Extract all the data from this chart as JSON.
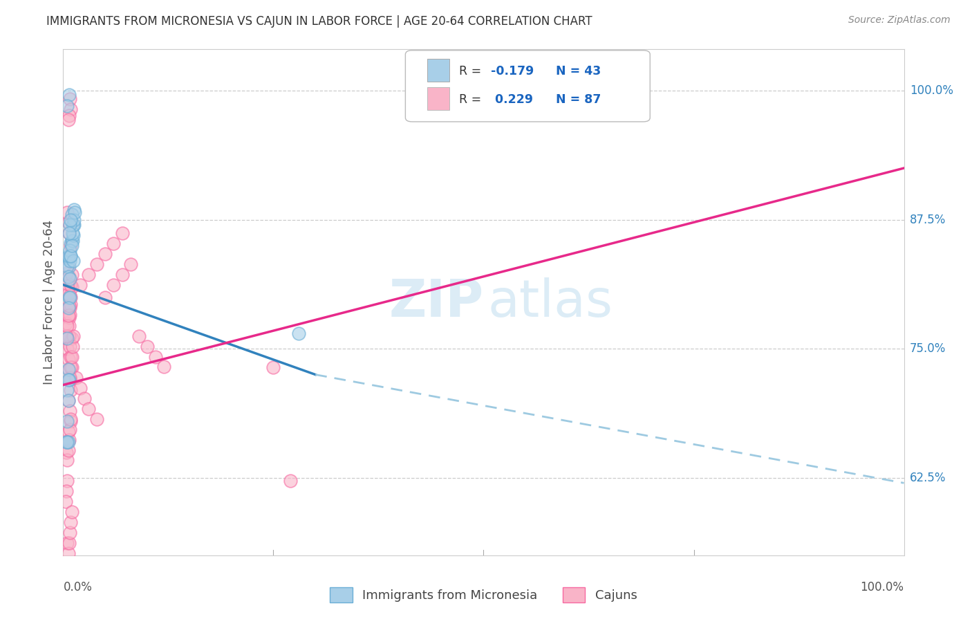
{
  "title": "IMMIGRANTS FROM MICRONESIA VS CAJUN IN LABOR FORCE | AGE 20-64 CORRELATION CHART",
  "source": "Source: ZipAtlas.com",
  "ylabel": "In Labor Force | Age 20-64",
  "yticks": [
    62.5,
    75.0,
    87.5,
    100.0
  ],
  "ytick_labels": [
    "62.5%",
    "75.0%",
    "87.5%",
    "100.0%"
  ],
  "xmin": 0.0,
  "xmax": 100.0,
  "ymin": 55.0,
  "ymax": 104.0,
  "legend_label1": "Immigrants from Micronesia",
  "legend_label2": "Cajuns",
  "R1": -0.179,
  "N1": 43,
  "R2": 0.229,
  "N2": 87,
  "color_blue": "#a8cfe8",
  "color_blue_edge": "#6aaed6",
  "color_pink": "#f9b4c8",
  "color_pink_edge": "#f768a1",
  "color_blue_line": "#3182bd",
  "color_pink_line": "#e7298a",
  "color_blue_dash": "#9ecae1",
  "watermark_zip": "ZIP",
  "watermark_atlas": "atlas",
  "background_color": "#ffffff",
  "grid_color": "#cccccc",
  "title_color": "#333333",
  "axis_label_color": "#555555",
  "ytick_color": "#3182bd",
  "blue_scatter_x": [
    0.5,
    0.7,
    0.8,
    0.6,
    0.7,
    0.5,
    0.6,
    0.7,
    0.8,
    0.6,
    0.9,
    1.0,
    1.1,
    0.8,
    0.9,
    1.2,
    1.3,
    1.0,
    1.1,
    1.2,
    1.3,
    0.5,
    0.4,
    0.6,
    0.8,
    0.9,
    1.0,
    1.1,
    1.2,
    1.3,
    1.4,
    0.7,
    0.5,
    28.0,
    0.6,
    0.7,
    0.5,
    0.6,
    0.8,
    0.9,
    0.7,
    0.6,
    0.5
  ],
  "blue_scatter_y": [
    76.0,
    80.0,
    80.0,
    79.0,
    83.0,
    83.0,
    82.0,
    83.8,
    83.5,
    84.0,
    85.3,
    85.5,
    85.5,
    84.5,
    84.0,
    83.5,
    88.5,
    88.0,
    87.0,
    86.0,
    87.0,
    68.0,
    66.0,
    66.0,
    81.8,
    84.0,
    85.0,
    86.2,
    87.0,
    87.5,
    88.2,
    99.6,
    98.5,
    76.5,
    73.0,
    72.0,
    71.0,
    70.0,
    87.0,
    87.5,
    86.2,
    72.0,
    66.0
  ],
  "pink_scatter_x": [
    0.4,
    0.5,
    0.6,
    0.7,
    0.8,
    0.9,
    0.6,
    0.5,
    0.4,
    0.7,
    0.8,
    0.9,
    0.6,
    0.5,
    0.4,
    0.8,
    0.9,
    1.0,
    0.7,
    0.6,
    0.8,
    0.9,
    0.7,
    0.6,
    0.5,
    1.0,
    0.7,
    0.8,
    0.9,
    0.6,
    0.5,
    0.4,
    0.7,
    0.8,
    0.9,
    1.0,
    1.5,
    2.0,
    2.5,
    3.0,
    4.0,
    5.0,
    6.0,
    7.0,
    8.0,
    9.0,
    10.0,
    11.0,
    12.0,
    0.8,
    0.9,
    0.7,
    0.6,
    0.5,
    0.4,
    0.3,
    0.8,
    0.9,
    1.0,
    1.1,
    1.2,
    25.0,
    27.0,
    0.5,
    0.6,
    0.7,
    0.8,
    0.9,
    0.4,
    0.5,
    0.6,
    0.7,
    0.8,
    0.9,
    1.0,
    0.5,
    0.6,
    0.7,
    0.8,
    0.9,
    1.0,
    2.0,
    3.0,
    4.0,
    5.0,
    6.0,
    7.0
  ],
  "pink_scatter_y": [
    76.0,
    75.0,
    74.0,
    73.0,
    72.0,
    71.0,
    70.0,
    76.0,
    77.5,
    78.0,
    69.0,
    68.0,
    67.0,
    66.0,
    65.0,
    79.0,
    80.0,
    81.0,
    82.0,
    83.0,
    84.0,
    85.0,
    86.2,
    87.3,
    88.2,
    76.0,
    77.2,
    78.3,
    79.3,
    80.3,
    81.3,
    82.3,
    76.2,
    75.2,
    74.2,
    73.2,
    72.2,
    71.2,
    70.2,
    69.2,
    68.2,
    80.0,
    81.2,
    82.2,
    83.2,
    76.2,
    75.2,
    74.2,
    73.3,
    99.2,
    98.2,
    97.6,
    97.2,
    62.2,
    61.2,
    60.2,
    72.2,
    73.2,
    74.2,
    75.2,
    76.2,
    73.2,
    62.2,
    64.2,
    65.2,
    66.2,
    67.2,
    68.2,
    76.2,
    77.2,
    78.2,
    79.2,
    80.2,
    81.2,
    82.2,
    56.2,
    55.2,
    56.2,
    57.2,
    58.2,
    59.2,
    81.2,
    82.2,
    83.2,
    84.2,
    85.2,
    86.2
  ],
  "blue_trend_x1": 0.0,
  "blue_trend_y1": 81.2,
  "blue_trend_x2": 30.0,
  "blue_trend_y2": 72.5,
  "blue_dash_x1": 30.0,
  "blue_dash_y1": 72.5,
  "blue_dash_x2": 100.0,
  "blue_dash_y2": 62.0,
  "pink_trend_x1": 0.0,
  "pink_trend_y1": 71.5,
  "pink_trend_x2": 100.0,
  "pink_trend_y2": 92.5
}
